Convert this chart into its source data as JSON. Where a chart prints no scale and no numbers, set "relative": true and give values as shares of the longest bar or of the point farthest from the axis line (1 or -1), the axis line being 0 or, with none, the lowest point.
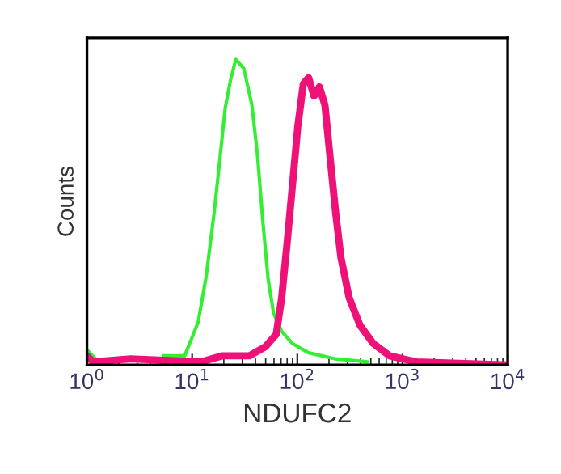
{
  "chart_data": {
    "type": "line",
    "relative": true,
    "xlabel": "NDUFC2",
    "ylabel": "Counts",
    "log": "x",
    "grid": false,
    "legend": false,
    "marker": "none",
    "line_style": "solid",
    "tick_labels": "x",
    "xlim": [
      1,
      10000
    ],
    "xticks": [
      {
        "value": 1,
        "label": "10$^{0}$"
      },
      {
        "value": 10,
        "label": "10$^{1}$"
      },
      {
        "value": 100,
        "label": "10$^{2}$"
      },
      {
        "value": 1000,
        "label": "10$^{3}$"
      },
      {
        "value": 10000,
        "label": "10$^{4}$"
      }
    ],
    "series": [
      {
        "color": "#33ee33",
        "x": [
          1.0,
          1.28,
          3.7,
          5.3,
          8.5,
          11.4,
          13.6,
          16.2,
          18.3,
          20.6,
          23.1,
          26,
          31,
          37,
          41.7,
          47,
          52.8,
          59.4,
          71,
          90,
          128,
          231,
          470
        ],
        "values": [
          0.05,
          0.01,
          null,
          0.03,
          0.03,
          0.14,
          0.29,
          0.5,
          0.67,
          0.84,
          0.93,
          1.0,
          0.97,
          0.85,
          0.69,
          0.47,
          0.28,
          0.17,
          0.11,
          0.07,
          0.04,
          0.02,
          0.01
        ]
      },
      {
        "color": "#ee1177",
        "x": [
          1.0,
          1.14,
          2.6,
          12.1,
          19.4,
          35,
          49.8,
          63,
          71,
          80,
          90,
          101,
          114,
          128,
          144,
          162,
          183,
          206,
          231,
          260,
          311,
          394,
          528,
          753,
          1360,
          10000
        ],
        "values": [
          0.03,
          0.01,
          0.02,
          0.01,
          0.03,
          0.03,
          0.06,
          0.1,
          0.22,
          0.4,
          0.59,
          0.78,
          0.92,
          0.94,
          0.88,
          0.91,
          0.85,
          0.67,
          0.5,
          0.35,
          0.22,
          0.13,
          0.07,
          0.03,
          0.01,
          0
        ]
      }
    ]
  }
}
